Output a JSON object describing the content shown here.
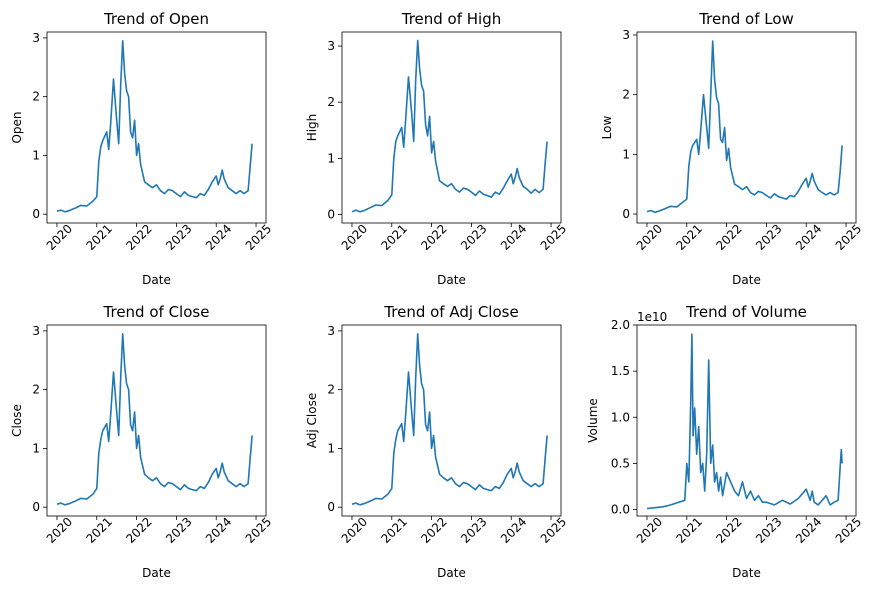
{
  "chart_data": [
    {
      "type": "line",
      "title": "Trend of Open",
      "xlabel": "Date",
      "ylabel": "Open",
      "xlim": [
        2019.75,
        2025.25
      ],
      "ylim": [
        -0.15,
        3.1
      ],
      "xticks": [
        2020,
        2021,
        2022,
        2023,
        2024,
        2025
      ],
      "yticks": [
        0,
        1,
        2,
        3
      ],
      "y_offset_text": "",
      "grid": false,
      "series": [
        {
          "color": "#1f77b4",
          "x": [
            2020.0,
            2020.1,
            2020.2,
            2020.3,
            2020.45,
            2020.6,
            2020.75,
            2020.9,
            2021.0,
            2021.05,
            2021.1,
            2021.15,
            2021.25,
            2021.3,
            2021.35,
            2021.42,
            2021.5,
            2021.55,
            2021.6,
            2021.65,
            2021.7,
            2021.75,
            2021.8,
            2021.85,
            2021.9,
            2021.95,
            2022.0,
            2022.05,
            2022.1,
            2022.2,
            2022.3,
            2022.4,
            2022.5,
            2022.6,
            2022.7,
            2022.8,
            2022.9,
            2023.0,
            2023.1,
            2023.2,
            2023.3,
            2023.4,
            2023.5,
            2023.6,
            2023.7,
            2023.8,
            2023.9,
            2024.0,
            2024.05,
            2024.1,
            2024.15,
            2024.2,
            2024.3,
            2024.4,
            2024.5,
            2024.6,
            2024.7,
            2024.8,
            2024.85,
            2024.9
          ],
          "y": [
            0.05,
            0.07,
            0.04,
            0.06,
            0.1,
            0.15,
            0.14,
            0.22,
            0.3,
            0.9,
            1.15,
            1.25,
            1.4,
            1.1,
            1.55,
            2.3,
            1.6,
            1.2,
            2.2,
            2.95,
            2.4,
            2.1,
            2.0,
            1.4,
            1.3,
            1.6,
            1.0,
            1.2,
            0.85,
            0.55,
            0.5,
            0.45,
            0.5,
            0.4,
            0.35,
            0.42,
            0.4,
            0.35,
            0.3,
            0.38,
            0.32,
            0.3,
            0.28,
            0.35,
            0.32,
            0.42,
            0.55,
            0.65,
            0.5,
            0.6,
            0.75,
            0.6,
            0.45,
            0.4,
            0.35,
            0.4,
            0.35,
            0.4,
            0.8,
            1.2
          ]
        }
      ]
    },
    {
      "type": "line",
      "title": "Trend of High",
      "xlabel": "Date",
      "ylabel": "High",
      "xlim": [
        2019.75,
        2025.25
      ],
      "ylim": [
        -0.15,
        3.25
      ],
      "xticks": [
        2020,
        2021,
        2022,
        2023,
        2024,
        2025
      ],
      "yticks": [
        0,
        1,
        2,
        3
      ],
      "y_offset_text": "",
      "grid": false,
      "series": [
        {
          "color": "#1f77b4",
          "x": [
            2020.0,
            2020.1,
            2020.2,
            2020.3,
            2020.45,
            2020.6,
            2020.75,
            2020.9,
            2021.0,
            2021.05,
            2021.1,
            2021.15,
            2021.25,
            2021.3,
            2021.35,
            2021.42,
            2021.5,
            2021.55,
            2021.6,
            2021.65,
            2021.7,
            2021.75,
            2021.8,
            2021.85,
            2021.9,
            2021.95,
            2022.0,
            2022.05,
            2022.1,
            2022.2,
            2022.3,
            2022.4,
            2022.5,
            2022.6,
            2022.7,
            2022.8,
            2022.9,
            2023.0,
            2023.1,
            2023.2,
            2023.3,
            2023.4,
            2023.5,
            2023.6,
            2023.7,
            2023.8,
            2023.9,
            2024.0,
            2024.05,
            2024.1,
            2024.15,
            2024.2,
            2024.3,
            2024.4,
            2024.5,
            2024.6,
            2024.7,
            2024.8,
            2024.85,
            2024.9
          ],
          "y": [
            0.05,
            0.08,
            0.05,
            0.07,
            0.12,
            0.17,
            0.16,
            0.25,
            0.35,
            1.0,
            1.3,
            1.4,
            1.55,
            1.2,
            1.7,
            2.45,
            1.8,
            1.3,
            2.4,
            3.1,
            2.6,
            2.3,
            2.2,
            1.6,
            1.4,
            1.75,
            1.1,
            1.3,
            0.95,
            0.6,
            0.55,
            0.5,
            0.55,
            0.45,
            0.4,
            0.47,
            0.45,
            0.4,
            0.34,
            0.42,
            0.36,
            0.34,
            0.31,
            0.4,
            0.36,
            0.47,
            0.6,
            0.72,
            0.55,
            0.66,
            0.82,
            0.66,
            0.5,
            0.45,
            0.38,
            0.45,
            0.39,
            0.45,
            0.9,
            1.3
          ]
        }
      ]
    },
    {
      "type": "line",
      "title": "Trend of Low",
      "xlabel": "Date",
      "ylabel": "Low",
      "xlim": [
        2019.75,
        2025.25
      ],
      "ylim": [
        -0.15,
        3.05
      ],
      "xticks": [
        2020,
        2021,
        2022,
        2023,
        2024,
        2025
      ],
      "yticks": [
        0,
        1,
        2,
        3
      ],
      "y_offset_text": "",
      "grid": false,
      "series": [
        {
          "color": "#1f77b4",
          "x": [
            2020.0,
            2020.1,
            2020.2,
            2020.3,
            2020.45,
            2020.6,
            2020.75,
            2020.9,
            2021.0,
            2021.05,
            2021.1,
            2021.15,
            2021.25,
            2021.3,
            2021.35,
            2021.42,
            2021.5,
            2021.55,
            2021.6,
            2021.65,
            2021.7,
            2021.75,
            2021.8,
            2021.85,
            2021.9,
            2021.95,
            2022.0,
            2022.05,
            2022.1,
            2022.2,
            2022.3,
            2022.4,
            2022.5,
            2022.6,
            2022.7,
            2022.8,
            2022.9,
            2023.0,
            2023.1,
            2023.2,
            2023.3,
            2023.4,
            2023.5,
            2023.6,
            2023.7,
            2023.8,
            2023.9,
            2024.0,
            2024.05,
            2024.1,
            2024.15,
            2024.2,
            2024.3,
            2024.4,
            2024.5,
            2024.6,
            2024.7,
            2024.8,
            2024.85,
            2024.9
          ],
          "y": [
            0.04,
            0.06,
            0.03,
            0.05,
            0.09,
            0.13,
            0.12,
            0.2,
            0.25,
            0.8,
            1.05,
            1.15,
            1.25,
            1.0,
            1.4,
            2.0,
            1.45,
            1.1,
            2.0,
            2.9,
            2.25,
            1.95,
            1.85,
            1.25,
            1.2,
            1.45,
            0.9,
            1.1,
            0.78,
            0.5,
            0.46,
            0.41,
            0.46,
            0.36,
            0.32,
            0.38,
            0.36,
            0.31,
            0.27,
            0.34,
            0.29,
            0.27,
            0.25,
            0.31,
            0.29,
            0.38,
            0.5,
            0.6,
            0.45,
            0.55,
            0.68,
            0.55,
            0.41,
            0.36,
            0.32,
            0.36,
            0.32,
            0.36,
            0.7,
            1.15
          ]
        }
      ]
    },
    {
      "type": "line",
      "title": "Trend of Close",
      "xlabel": "Date",
      "ylabel": "Close",
      "xlim": [
        2019.75,
        2025.25
      ],
      "ylim": [
        -0.15,
        3.1
      ],
      "xticks": [
        2020,
        2021,
        2022,
        2023,
        2024,
        2025
      ],
      "yticks": [
        0,
        1,
        2,
        3
      ],
      "y_offset_text": "",
      "grid": false,
      "series": [
        {
          "color": "#1f77b4",
          "x": [
            2020.0,
            2020.1,
            2020.2,
            2020.3,
            2020.45,
            2020.6,
            2020.75,
            2020.9,
            2021.0,
            2021.05,
            2021.1,
            2021.15,
            2021.25,
            2021.3,
            2021.35,
            2021.42,
            2021.5,
            2021.55,
            2021.6,
            2021.65,
            2021.7,
            2021.75,
            2021.8,
            2021.85,
            2021.9,
            2021.95,
            2022.0,
            2022.05,
            2022.1,
            2022.2,
            2022.3,
            2022.4,
            2022.5,
            2022.6,
            2022.7,
            2022.8,
            2022.9,
            2023.0,
            2023.1,
            2023.2,
            2023.3,
            2023.4,
            2023.5,
            2023.6,
            2023.7,
            2023.8,
            2023.9,
            2024.0,
            2024.05,
            2024.1,
            2024.15,
            2024.2,
            2024.3,
            2024.4,
            2024.5,
            2024.6,
            2024.7,
            2024.8,
            2024.85,
            2024.9
          ],
          "y": [
            0.05,
            0.07,
            0.04,
            0.06,
            0.1,
            0.15,
            0.14,
            0.22,
            0.32,
            0.92,
            1.15,
            1.3,
            1.42,
            1.12,
            1.58,
            2.3,
            1.62,
            1.22,
            2.2,
            2.95,
            2.42,
            2.1,
            2.0,
            1.4,
            1.3,
            1.62,
            1.0,
            1.22,
            0.85,
            0.56,
            0.5,
            0.45,
            0.5,
            0.4,
            0.35,
            0.42,
            0.4,
            0.35,
            0.3,
            0.38,
            0.32,
            0.3,
            0.28,
            0.35,
            0.32,
            0.42,
            0.56,
            0.66,
            0.5,
            0.6,
            0.75,
            0.6,
            0.45,
            0.4,
            0.35,
            0.4,
            0.35,
            0.4,
            0.82,
            1.22
          ]
        }
      ]
    },
    {
      "type": "line",
      "title": "Trend of Adj Close",
      "xlabel": "Date",
      "ylabel": "Adj Close",
      "xlim": [
        2019.75,
        2025.25
      ],
      "ylim": [
        -0.15,
        3.1
      ],
      "xticks": [
        2020,
        2021,
        2022,
        2023,
        2024,
        2025
      ],
      "yticks": [
        0,
        1,
        2,
        3
      ],
      "y_offset_text": "",
      "grid": false,
      "series": [
        {
          "color": "#1f77b4",
          "x": [
            2020.0,
            2020.1,
            2020.2,
            2020.3,
            2020.45,
            2020.6,
            2020.75,
            2020.9,
            2021.0,
            2021.05,
            2021.1,
            2021.15,
            2021.25,
            2021.3,
            2021.35,
            2021.42,
            2021.5,
            2021.55,
            2021.6,
            2021.65,
            2021.7,
            2021.75,
            2021.8,
            2021.85,
            2021.9,
            2021.95,
            2022.0,
            2022.05,
            2022.1,
            2022.2,
            2022.3,
            2022.4,
            2022.5,
            2022.6,
            2022.7,
            2022.8,
            2022.9,
            2023.0,
            2023.1,
            2023.2,
            2023.3,
            2023.4,
            2023.5,
            2023.6,
            2023.7,
            2023.8,
            2023.9,
            2024.0,
            2024.05,
            2024.1,
            2024.15,
            2024.2,
            2024.3,
            2024.4,
            2024.5,
            2024.6,
            2024.7,
            2024.8,
            2024.85,
            2024.9
          ],
          "y": [
            0.05,
            0.07,
            0.04,
            0.06,
            0.1,
            0.15,
            0.14,
            0.22,
            0.32,
            0.92,
            1.15,
            1.3,
            1.42,
            1.12,
            1.58,
            2.3,
            1.62,
            1.22,
            2.2,
            2.95,
            2.42,
            2.1,
            2.0,
            1.4,
            1.3,
            1.62,
            1.0,
            1.22,
            0.85,
            0.56,
            0.5,
            0.45,
            0.5,
            0.4,
            0.35,
            0.42,
            0.4,
            0.35,
            0.3,
            0.38,
            0.32,
            0.3,
            0.28,
            0.35,
            0.32,
            0.42,
            0.56,
            0.66,
            0.5,
            0.6,
            0.75,
            0.6,
            0.45,
            0.4,
            0.35,
            0.4,
            0.35,
            0.4,
            0.82,
            1.22
          ]
        }
      ]
    },
    {
      "type": "line",
      "title": "Trend of Volume",
      "xlabel": "Date",
      "ylabel": "Volume",
      "xlim": [
        2019.75,
        2025.25
      ],
      "ylim": [
        -0.07,
        2.0
      ],
      "xticks": [
        2020,
        2021,
        2022,
        2023,
        2024,
        2025
      ],
      "yticks": [
        0.0,
        0.5,
        1.0,
        1.5,
        2.0
      ],
      "ytick_labels": [
        "0.0",
        "0.5",
        "1.0",
        "1.5",
        "2.0"
      ],
      "y_offset_text": "1e10",
      "grid": false,
      "series": [
        {
          "color": "#1f77b4",
          "x": [
            2020.0,
            2020.2,
            2020.4,
            2020.6,
            2020.8,
            2020.95,
            2021.0,
            2021.05,
            2021.1,
            2021.13,
            2021.16,
            2021.2,
            2021.25,
            2021.3,
            2021.35,
            2021.4,
            2021.45,
            2021.5,
            2021.55,
            2021.6,
            2021.65,
            2021.7,
            2021.75,
            2021.8,
            2021.85,
            2021.9,
            2022.0,
            2022.1,
            2022.2,
            2022.3,
            2022.4,
            2022.5,
            2022.6,
            2022.7,
            2022.8,
            2022.9,
            2023.0,
            2023.2,
            2023.4,
            2023.6,
            2023.8,
            2024.0,
            2024.1,
            2024.15,
            2024.2,
            2024.3,
            2024.4,
            2024.5,
            2024.6,
            2024.7,
            2024.8,
            2024.85,
            2024.88,
            2024.9
          ],
          "y": [
            0.01,
            0.02,
            0.03,
            0.05,
            0.08,
            0.1,
            0.5,
            0.3,
            1.2,
            1.9,
            0.8,
            1.1,
            0.6,
            0.9,
            0.4,
            0.5,
            0.2,
            0.6,
            1.62,
            0.5,
            0.7,
            0.3,
            0.4,
            0.2,
            0.35,
            0.15,
            0.4,
            0.3,
            0.2,
            0.15,
            0.3,
            0.12,
            0.2,
            0.1,
            0.15,
            0.08,
            0.08,
            0.05,
            0.1,
            0.06,
            0.12,
            0.22,
            0.1,
            0.2,
            0.08,
            0.05,
            0.1,
            0.15,
            0.05,
            0.08,
            0.1,
            0.45,
            0.65,
            0.5
          ]
        }
      ]
    }
  ]
}
